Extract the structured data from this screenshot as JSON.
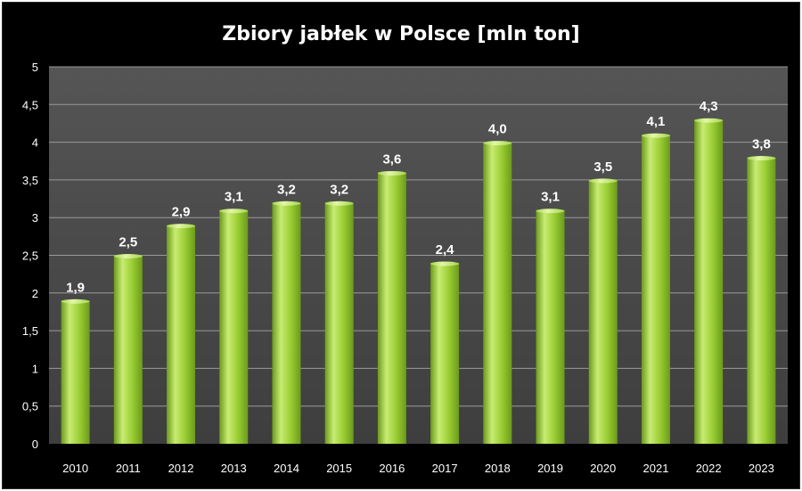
{
  "chart_data": {
    "type": "bar",
    "title": "Zbiory jabłek w Polsce [mln ton]",
    "categories": [
      "2010",
      "2011",
      "2012",
      "2013",
      "2014",
      "2015",
      "2016",
      "2017",
      "2018",
      "2019",
      "2020",
      "2021",
      "2022",
      "2023"
    ],
    "values": [
      1.9,
      2.5,
      2.9,
      3.1,
      3.2,
      3.2,
      3.6,
      2.4,
      4.0,
      3.1,
      3.5,
      4.1,
      4.3,
      3.8
    ],
    "data_labels": [
      "1,9",
      "2,5",
      "2,9",
      "3,1",
      "3,2",
      "3,2",
      "3,6",
      "2,4",
      "4,0",
      "3,1",
      "3,5",
      "4,1",
      "4,3",
      "3,8"
    ],
    "highlight_index": 13,
    "y_ticks": [
      0,
      0.5,
      1,
      1.5,
      2,
      2.5,
      3,
      3.5,
      4,
      4.5,
      5
    ],
    "y_tick_labels": [
      "0",
      "0,5",
      "1",
      "1,5",
      "2",
      "2,5",
      "3",
      "3,5",
      "4",
      "4,5",
      "5"
    ],
    "ylim": [
      0,
      5
    ],
    "grid": true,
    "legend": "none",
    "colors": {
      "bar_light": "#c8ec73",
      "bar_mid": "#9acd32",
      "bar_dark": "#6b9a1c",
      "plot_bg_top": "#555555",
      "plot_bg_bottom": "#3e3e3e",
      "label": "#ffffff",
      "highlight_label": "#e8202a"
    }
  }
}
